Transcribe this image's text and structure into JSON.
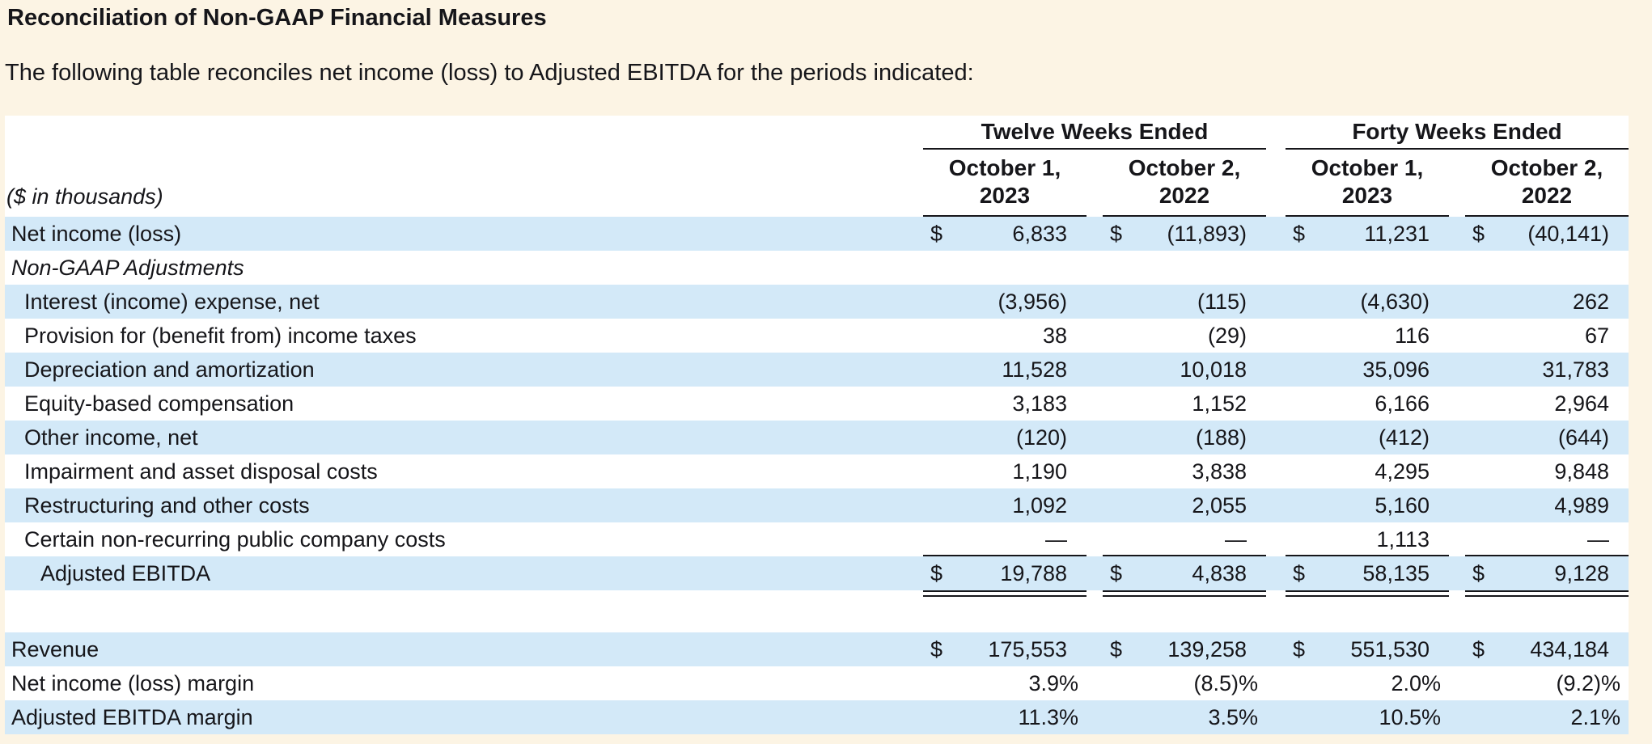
{
  "page": {
    "title": "Reconciliation of Non-GAAP Financial Measures",
    "intro": "The following table reconciles net income (loss) to Adjusted EBITDA for the periods indicated:"
  },
  "colors": {
    "background": "#FCF4E4",
    "row_shade": "#D3E9F8",
    "text": "#16161A"
  },
  "currency_symbol": "$",
  "table": {
    "units_note": "($ in thousands)",
    "column_groups": [
      {
        "title": "Twelve Weeks Ended",
        "columns": [
          {
            "line1": "October 1,",
            "line2": "2023"
          },
          {
            "line1": "October 2,",
            "line2": "2022"
          }
        ]
      },
      {
        "title": "Forty Weeks Ended",
        "columns": [
          {
            "line1": "October 1,",
            "line2": "2023"
          },
          {
            "line1": "October 2,",
            "line2": "2022"
          }
        ]
      }
    ],
    "rows": [
      {
        "label": "Net income (loss)",
        "values": [
          "6,833",
          "(11,893)",
          "11,231",
          "(40,141)"
        ]
      },
      {
        "label": "Non-GAAP Adjustments",
        "values": [
          "",
          "",
          "",
          ""
        ]
      },
      {
        "label": "Interest (income) expense, net",
        "values": [
          "(3,956)",
          "(115)",
          "(4,630)",
          "262"
        ]
      },
      {
        "label": "Provision for (benefit from) income taxes",
        "values": [
          "38",
          "(29)",
          "116",
          "67"
        ]
      },
      {
        "label": "Depreciation and amortization",
        "values": [
          "11,528",
          "10,018",
          "35,096",
          "31,783"
        ]
      },
      {
        "label": "Equity-based compensation",
        "values": [
          "3,183",
          "1,152",
          "6,166",
          "2,964"
        ]
      },
      {
        "label": "Other income, net",
        "values": [
          "(120)",
          "(188)",
          "(412)",
          "(644)"
        ]
      },
      {
        "label": "Impairment and asset disposal costs",
        "values": [
          "1,190",
          "3,838",
          "4,295",
          "9,848"
        ]
      },
      {
        "label": "Restructuring and other costs",
        "values": [
          "1,092",
          "2,055",
          "5,160",
          "4,989"
        ]
      },
      {
        "label": "Certain non-recurring public company costs",
        "values": [
          "—",
          "—",
          "1,113",
          "—"
        ]
      },
      {
        "label": "Adjusted EBITDA",
        "values": [
          "19,788",
          "4,838",
          "58,135",
          "9,128"
        ]
      },
      {
        "label": "Revenue",
        "values": [
          "175,553",
          "139,258",
          "551,530",
          "434,184"
        ]
      },
      {
        "label": "Net income (loss) margin",
        "values": [
          "3.9%",
          "(8.5)%",
          "2.0%",
          "(9.2)%"
        ]
      },
      {
        "label": "Adjusted EBITDA margin",
        "values": [
          "11.3%",
          "3.5%",
          "10.5%",
          "2.1%"
        ]
      }
    ]
  }
}
